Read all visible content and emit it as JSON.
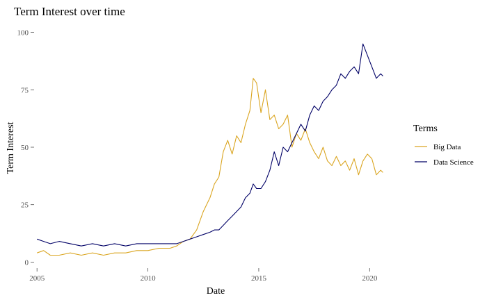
{
  "chart_data": {
    "type": "line",
    "title": "Term Interest over time",
    "xlabel": "Date",
    "ylabel": "Term Interest",
    "xlim": [
      2004.9,
      2020.9
    ],
    "ylim": [
      -2,
      102
    ],
    "x_ticks": [
      2005,
      2010,
      2015,
      2020
    ],
    "x_tick_labels": [
      "2005",
      "2010",
      "2015",
      "2020"
    ],
    "y_ticks": [
      0,
      25,
      50,
      75,
      100
    ],
    "y_tick_labels": [
      "0",
      "25",
      "50",
      "75",
      "100"
    ],
    "grid": false,
    "legend": {
      "title": "Terms",
      "position": "right"
    },
    "series": [
      {
        "name": "Big Data",
        "color": "#DAA520",
        "x": [
          2005.0,
          2005.3,
          2005.6,
          2006.0,
          2006.5,
          2007.0,
          2007.5,
          2008.0,
          2008.5,
          2009.0,
          2009.5,
          2010.0,
          2010.5,
          2011.0,
          2011.3,
          2011.6,
          2011.9,
          2012.2,
          2012.5,
          2012.8,
          2013.0,
          2013.2,
          2013.4,
          2013.6,
          2013.8,
          2014.0,
          2014.2,
          2014.4,
          2014.6,
          2014.75,
          2014.9,
          2015.1,
          2015.3,
          2015.5,
          2015.7,
          2015.9,
          2016.1,
          2016.3,
          2016.5,
          2016.7,
          2016.9,
          2017.1,
          2017.3,
          2017.5,
          2017.7,
          2017.9,
          2018.1,
          2018.3,
          2018.5,
          2018.7,
          2018.9,
          2019.1,
          2019.3,
          2019.5,
          2019.7,
          2019.9,
          2020.1,
          2020.3,
          2020.5,
          2020.6
        ],
        "values": [
          4,
          5,
          3,
          3,
          4,
          3,
          4,
          3,
          4,
          4,
          5,
          5,
          6,
          6,
          7,
          9,
          10,
          14,
          22,
          28,
          34,
          37,
          48,
          53,
          47,
          55,
          52,
          60,
          66,
          80,
          78,
          65,
          75,
          62,
          64,
          58,
          60,
          64,
          50,
          56,
          53,
          58,
          52,
          48,
          45,
          50,
          44,
          42,
          46,
          42,
          44,
          40,
          45,
          38,
          44,
          47,
          45,
          38,
          40,
          39
        ]
      },
      {
        "name": "Data Science",
        "color": "#000066",
        "x": [
          2005.0,
          2005.3,
          2005.6,
          2006.0,
          2006.5,
          2007.0,
          2007.5,
          2008.0,
          2008.5,
          2009.0,
          2009.5,
          2010.0,
          2010.5,
          2011.0,
          2011.3,
          2011.6,
          2011.9,
          2012.2,
          2012.5,
          2012.8,
          2013.0,
          2013.2,
          2013.4,
          2013.6,
          2013.8,
          2014.0,
          2014.2,
          2014.4,
          2014.6,
          2014.75,
          2014.9,
          2015.1,
          2015.3,
          2015.5,
          2015.7,
          2015.9,
          2016.1,
          2016.3,
          2016.5,
          2016.7,
          2016.9,
          2017.1,
          2017.3,
          2017.5,
          2017.7,
          2017.9,
          2018.1,
          2018.3,
          2018.5,
          2018.7,
          2018.9,
          2019.1,
          2019.3,
          2019.5,
          2019.7,
          2019.9,
          2020.1,
          2020.3,
          2020.5,
          2020.6
        ],
        "values": [
          10,
          9,
          8,
          9,
          8,
          7,
          8,
          7,
          8,
          7,
          8,
          8,
          8,
          8,
          8,
          9,
          10,
          11,
          12,
          13,
          14,
          14,
          16,
          18,
          20,
          22,
          24,
          28,
          30,
          34,
          32,
          32,
          35,
          40,
          48,
          42,
          50,
          48,
          52,
          56,
          60,
          57,
          64,
          68,
          66,
          70,
          72,
          75,
          77,
          82,
          80,
          83,
          85,
          82,
          95,
          90,
          85,
          80,
          82,
          81
        ]
      }
    ]
  }
}
